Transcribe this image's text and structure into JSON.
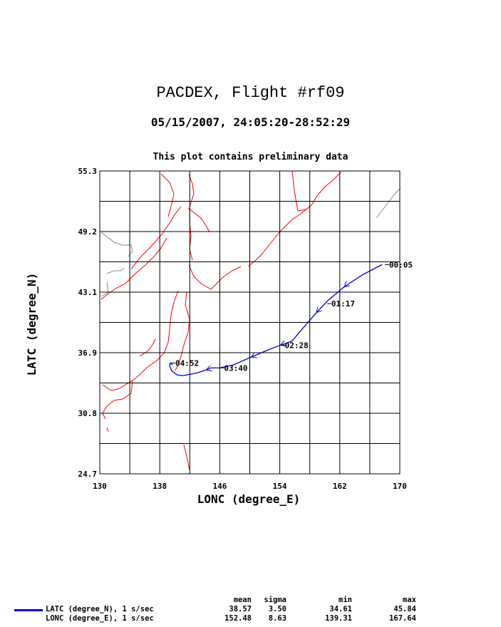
{
  "title": "PACDEX, Flight #rf09",
  "subtitle": "05/15/2007, 24:05:20-28:52:29",
  "note": "This plot contains preliminary data",
  "colors": {
    "track": "#0000cc",
    "coast": "#ff0000",
    "border": "#888888",
    "grid": "#000000"
  },
  "chart_data": {
    "type": "line",
    "xlabel": "LONC (degree_E)",
    "ylabel": "LATC (degree_N)",
    "xlim": [
      130,
      170
    ],
    "ylim": [
      24.7,
      55.3
    ],
    "xticks": [
      "130",
      "138",
      "146",
      "154",
      "162",
      "170"
    ],
    "yticks": [
      "24.7",
      "30.8",
      "36.9",
      "43.1",
      "49.2",
      "55.3"
    ],
    "grid": true,
    "series": [
      {
        "name": "LATC (degree_N), 1 s/sec",
        "x": [
          167.64,
          165.0,
          162.6,
          160.4,
          158.9,
          157.3,
          155.6,
          154.1,
          152.7,
          150.2,
          147.8,
          146.0,
          144.8,
          144.2,
          143.0,
          141.6,
          141.1,
          140.3,
          139.6,
          139.31,
          139.4,
          139.7
        ],
        "y": [
          45.84,
          44.8,
          43.6,
          42.2,
          41.0,
          39.6,
          38.1,
          37.7,
          37.3,
          36.5,
          35.7,
          35.4,
          35.4,
          35.2,
          34.9,
          34.7,
          34.61,
          34.7,
          35.1,
          35.6,
          35.9,
          35.7
        ]
      }
    ],
    "time_labels": [
      {
        "label": "00:05",
        "lon": 168.0,
        "lat": 45.84
      },
      {
        "label": "01:17",
        "lon": 160.3,
        "lat": 41.9
      },
      {
        "label": "02:28",
        "lon": 154.1,
        "lat": 37.7
      },
      {
        "label": "03:40",
        "lon": 146.0,
        "lat": 35.4
      },
      {
        "label": "04:52",
        "lon": 139.5,
        "lat": 35.9
      }
    ],
    "stats": {
      "headers": [
        "mean",
        "sigma",
        "min",
        "max"
      ],
      "rows": [
        {
          "label": "LATC (degree_N), 1 s/sec",
          "mean": "38.57",
          "sigma": "3.50",
          "min": "34.61",
          "max": "45.84"
        },
        {
          "label": "LONC (degree_E), 1 s/sec",
          "mean": "152.48",
          "sigma": "8.63",
          "min": "139.31",
          "max": "167.64"
        }
      ]
    }
  }
}
